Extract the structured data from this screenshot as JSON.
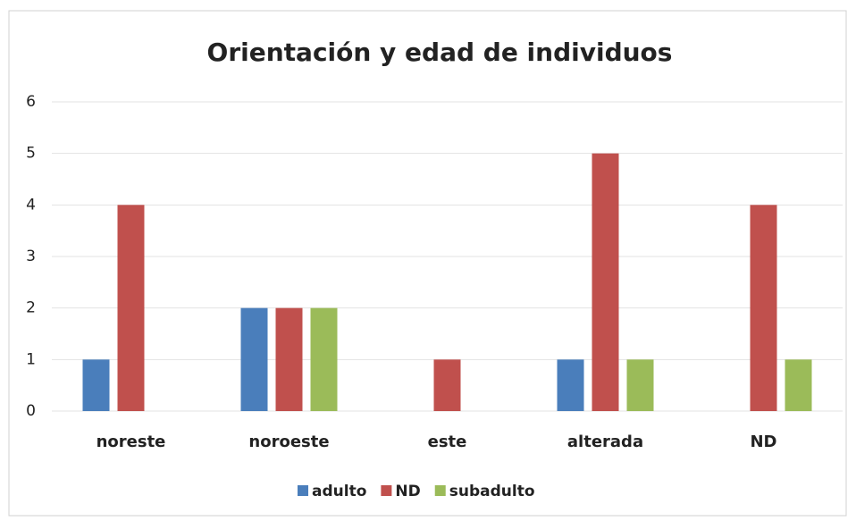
{
  "chart_data": {
    "type": "bar",
    "title": "Orientación y edad de individuos",
    "categories": [
      "noreste",
      "noroeste",
      "este",
      "alterada",
      "ND"
    ],
    "series": [
      {
        "name": "adulto",
        "color": "#4a7ebb",
        "values": [
          1,
          2,
          0,
          1,
          0
        ]
      },
      {
        "name": "ND",
        "color": "#c0504d",
        "values": [
          4,
          2,
          1,
          5,
          4
        ]
      },
      {
        "name": "subadulto",
        "color": "#9bbb59",
        "values": [
          0,
          2,
          0,
          1,
          1
        ]
      }
    ],
    "ylim": [
      0,
      6
    ],
    "yticks": [
      0,
      1,
      2,
      3,
      4,
      5,
      6
    ],
    "grid": true,
    "legend": "bottom"
  }
}
